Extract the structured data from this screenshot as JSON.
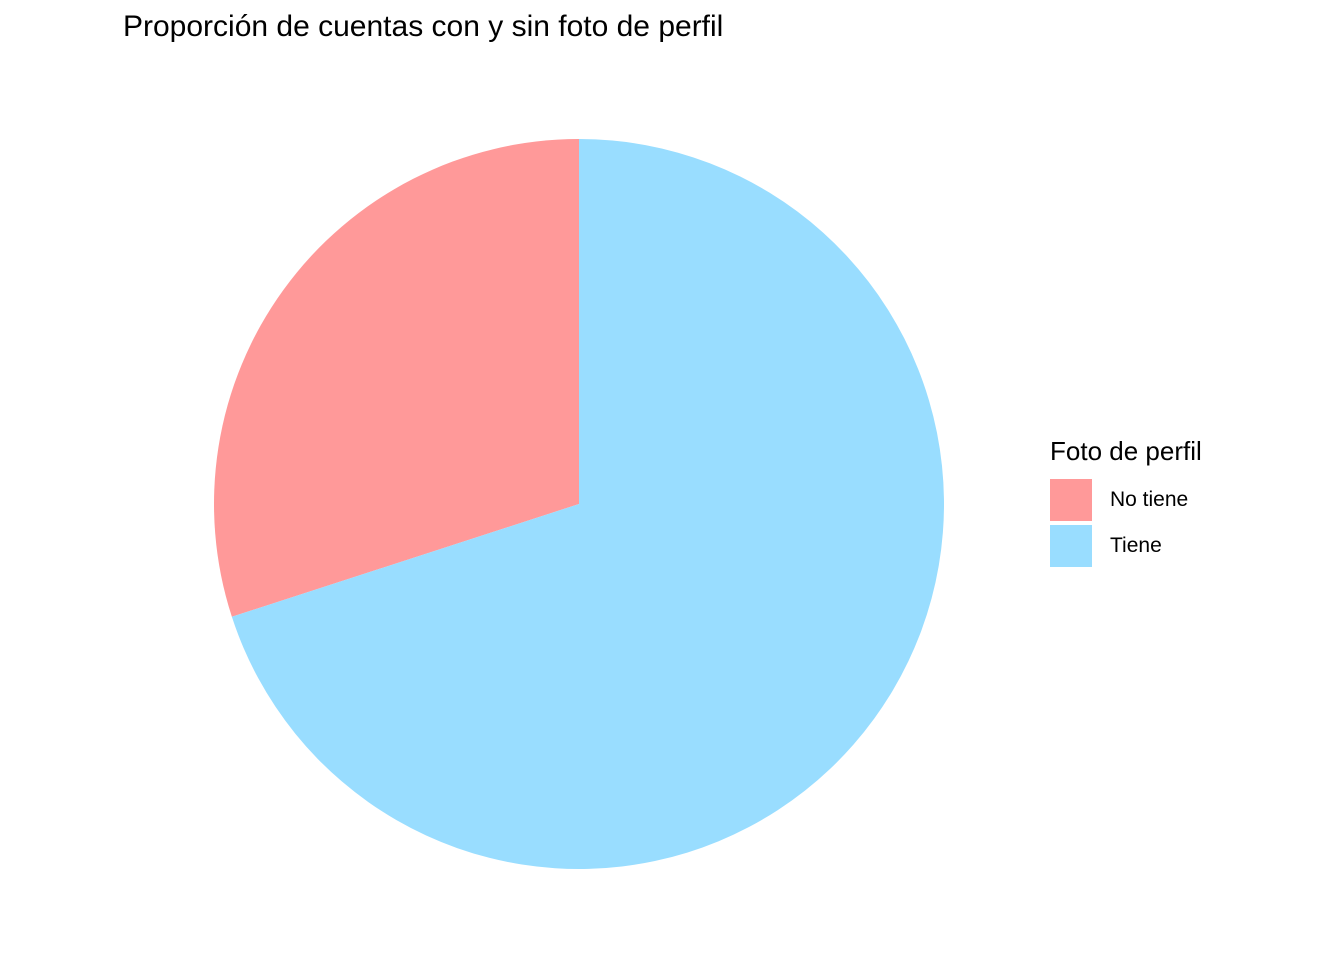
{
  "chart_data": {
    "type": "pie",
    "title": "Proporción de cuentas con y sin foto de perfil",
    "legend": {
      "title": "Foto de perfil",
      "placement": "right"
    },
    "slices": [
      {
        "label": "No tiene",
        "value": 0.3,
        "color": "#ff9999"
      },
      {
        "label": "Tiene",
        "value": 0.7,
        "color": "#99ddff"
      }
    ]
  }
}
